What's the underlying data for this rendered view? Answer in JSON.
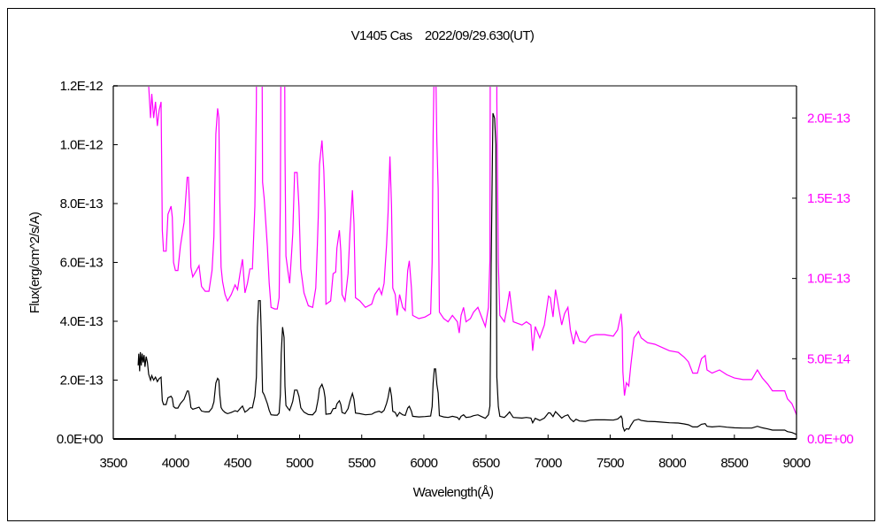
{
  "chart_data": {
    "type": "line",
    "title": "V1405 Cas　2022/09/29.630(UT)",
    "xlabel": "Wavelength(Å)",
    "ylabel": "Flux(erg/cm^2/s/A)",
    "xlim": [
      3500,
      9000
    ],
    "ylim_left": [
      0,
      1.2e-12
    ],
    "ylim_right": [
      0,
      2.2e-13
    ],
    "x_ticks": [
      "3500",
      "4000",
      "4500",
      "5000",
      "5500",
      "6000",
      "6500",
      "7000",
      "7500",
      "8000",
      "8500",
      "9000"
    ],
    "y_ticks_left": [
      "0.0E+00",
      "2.0E-13",
      "4.0E-13",
      "6.0E-13",
      "8.0E-13",
      "1.0E-12",
      "1.2E-12"
    ],
    "y_ticks_right": [
      "0.0E+00",
      "5.0E-14",
      "1.0E-13",
      "1.5E-13",
      "2.0E-13"
    ],
    "grid": false,
    "series": [
      {
        "axis": "left",
        "color": "#000000"
      },
      {
        "axis": "right",
        "color": "#ff00ff"
      }
    ],
    "x": [
      3700,
      3705,
      3712,
      3718,
      3725,
      3732,
      3740,
      3748,
      3755,
      3765,
      3775,
      3785,
      3800,
      3810,
      3825,
      3840,
      3855,
      3870,
      3885,
      3895,
      3905,
      3925,
      3940,
      3965,
      3975,
      3985,
      4000,
      4020,
      4040,
      4070,
      4095,
      4105,
      4115,
      4125,
      4140,
      4170,
      4190,
      4210,
      4240,
      4270,
      4295,
      4310,
      4326,
      4340,
      4350,
      4357,
      4368,
      4380,
      4400,
      4420,
      4450,
      4480,
      4500,
      4520,
      4540,
      4560,
      4580,
      4600,
      4620,
      4640,
      4652,
      4660,
      4670,
      4683,
      4692,
      4702,
      4715,
      4740,
      4755,
      4770,
      4800,
      4820,
      4835,
      4845,
      4852,
      4863,
      4875,
      4882,
      4890,
      4905,
      4920,
      4935,
      4945,
      4960,
      4980,
      4995,
      5010,
      5035,
      5070,
      5105,
      5130,
      5143,
      5150,
      5160,
      5180,
      5195,
      5205,
      5212,
      5250,
      5270,
      5290,
      5300,
      5320,
      5332,
      5342,
      5365,
      5390,
      5405,
      5425,
      5438,
      5450,
      5485,
      5530,
      5580,
      5605,
      5640,
      5660,
      5680,
      5700,
      5712,
      5727,
      5740,
      5750,
      5770,
      5785,
      5805,
      5830,
      5850,
      5870,
      5883,
      5900,
      5910,
      5960,
      6010,
      6055,
      6067,
      6075,
      6085,
      6095,
      6105,
      6115,
      6125,
      6160,
      6195,
      6230,
      6270,
      6285,
      6300,
      6320,
      6340,
      6375,
      6400,
      6435,
      6460,
      6495,
      6520,
      6532,
      6542,
      6556,
      6570,
      6580,
      6588,
      6600,
      6612,
      6648,
      6670,
      6690,
      6705,
      6720,
      6790,
      6826,
      6862,
      6876,
      6897,
      6933,
      6970,
      6985,
      7004,
      7018,
      7040,
      7060,
      7085,
      7110,
      7133,
      7160,
      7180,
      7205,
      7225,
      7254,
      7300,
      7340,
      7383,
      7454,
      7525,
      7560,
      7588,
      7597,
      7602,
      7615,
      7631,
      7650,
      7666,
      7680,
      7692,
      7728,
      7750,
      7800,
      7860,
      7917,
      7977,
      8048,
      8095,
      8130,
      8165,
      8203,
      8235,
      8265,
      8280,
      8320,
      8380,
      8440,
      8500,
      8570,
      8640,
      8685,
      8725,
      8770,
      8806,
      8855,
      8905,
      8927,
      8963,
      8990,
      9000
    ],
    "flux": [
      2.5e-13,
      2.9e-13,
      2.3e-13,
      2.95e-13,
      2.5e-13,
      2.9e-13,
      2.6e-13,
      2.85e-13,
      2.45e-13,
      2.8e-13,
      2.6e-13,
      2.2e-13,
      2e-13,
      2.15e-13,
      2e-13,
      2.1e-13,
      1.95e-13,
      2.05e-13,
      2.1e-13,
      1.3e-13,
      1.17e-13,
      1.17e-13,
      1.4e-13,
      1.45e-13,
      1.38e-13,
      1.1e-13,
      1.05e-13,
      1.05e-13,
      1.2e-13,
      1.35e-13,
      1.63e-13,
      1.63e-13,
      1.43e-13,
      1.07e-13,
      1.01e-13,
      1.05e-13,
      1.08e-13,
      9.5e-14,
      9.2e-14,
      9.2e-14,
      1.05e-13,
      1.26e-13,
      1.9e-13,
      2.06e-13,
      2e-13,
      1.51e-13,
      1.07e-13,
      9.8e-14,
      9e-14,
      8.6e-14,
      9e-14,
      9.6e-14,
      9.3e-14,
      1.03e-13,
      1.12e-13,
      9.1e-14,
      9.7e-14,
      1.06e-13,
      1.06e-13,
      1.45e-13,
      2.1e-13,
      3.8e-13,
      4.7e-13,
      4.7e-13,
      3.5e-13,
      1.6e-13,
      1.5e-13,
      1.2e-13,
      9.7e-14,
      8.2e-14,
      8.1e-14,
      8.1e-14,
      8.8e-14,
      1.5e-13,
      2.9e-13,
      3.8e-13,
      3.45e-13,
      1.8e-13,
      1.14e-13,
      1.05e-13,
      9.7e-14,
      1.15e-13,
      1.28e-13,
      1.66e-13,
      1.66e-13,
      1.45e-13,
      1.06e-13,
      9.1e-14,
      8.3e-14,
      8.2e-14,
      9.4e-14,
      1.21e-13,
      1.38e-13,
      1.71e-13,
      1.86e-13,
      1.67e-13,
      1.41e-13,
      8.4e-14,
      8.6e-14,
      1.03e-13,
      1.04e-13,
      1.19e-13,
      1.3e-13,
      1.17e-13,
      9e-14,
      8.6e-14,
      1.03e-13,
      1.28e-13,
      1.55e-13,
      1.34e-13,
      8.8e-14,
      8.6e-14,
      8.2e-14,
      8.4e-14,
      9e-14,
      9.4e-14,
      9e-14,
      9.7e-14,
      1.21e-13,
      1.41e-13,
      1.76e-13,
      1.45e-13,
      9.4e-14,
      9e-14,
      7.7e-14,
      9e-14,
      8.2e-14,
      8e-14,
      1.05e-13,
      1.11e-13,
      9.4e-14,
      7.7e-14,
      7.5e-14,
      7.6e-14,
      7.8e-14,
      1.1e-13,
      1.89e-13,
      2.38e-13,
      2.38e-13,
      1.86e-13,
      1.56e-13,
      7.9e-14,
      7.5e-14,
      7.3e-14,
      7.7e-14,
      7.3e-14,
      6.6e-14,
      7.7e-14,
      8.2e-14,
      7.3e-14,
      7.5e-14,
      7.9e-14,
      8.2e-14,
      7.7e-14,
      7e-14,
      8.2e-14,
      1.12e-13,
      5.98e-13,
      1.107e-12,
      1.09e-12,
      1e-12,
      2.1e-13,
      1.1e-13,
      7.7e-14,
      7.3e-14,
      8.2e-14,
      9.2e-14,
      8.2e-14,
      7.3e-14,
      7.1e-14,
      7.3e-14,
      7.1e-14,
      5.5e-14,
      7e-14,
      6.3e-14,
      7.1e-14,
      7.9e-14,
      8.9e-14,
      8.8e-14,
      7.6e-14,
      9.3e-14,
      8.2e-14,
      7.1e-14,
      7.8e-14,
      8.2e-14,
      6.8e-14,
      5.9e-14,
      6.7e-14,
      6.1e-14,
      6e-14,
      6.4e-14,
      6.5e-14,
      6.5e-14,
      6.4e-14,
      6.8e-14,
      7.8e-14,
      6.9e-14,
      4.2e-14,
      2.7e-14,
      3.5e-14,
      3.3e-14,
      4.6e-14,
      5.5e-14,
      6.3e-14,
      6.7e-14,
      6.3e-14,
      6e-14,
      5.9e-14,
      5.7e-14,
      5.5e-14,
      5.4e-14,
      5.1e-14,
      4.8e-14,
      4.1e-14,
      4.1e-14,
      5e-14,
      5.2e-14,
      4.3e-14,
      4.1e-14,
      4.3e-14,
      4e-14,
      3.8e-14,
      3.7e-14,
      3.7e-14,
      4.3e-14,
      3.8e-14,
      3.4e-14,
      3e-14,
      3e-14,
      3e-14,
      2.5e-14,
      2.2e-14,
      1.7e-14,
      1.5e-14
    ]
  }
}
